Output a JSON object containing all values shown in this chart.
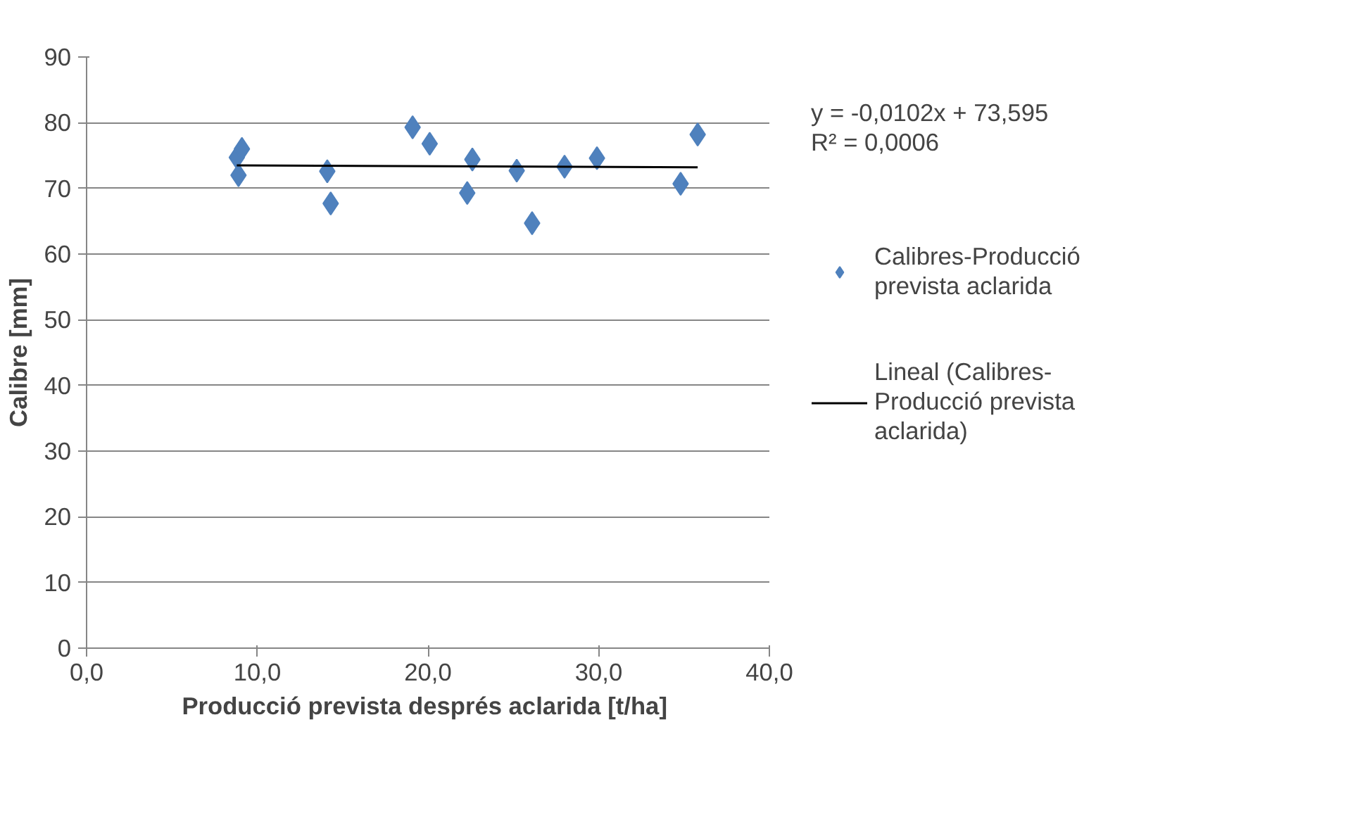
{
  "chart_data": {
    "type": "scatter",
    "xlabel": "Producció prevista després aclarida  [t/ha]",
    "ylabel": "Calibre [mm]",
    "xlim": [
      0,
      40
    ],
    "xticks": [
      {
        "value": 0,
        "label": "0,0"
      },
      {
        "value": 10,
        "label": "10,0"
      },
      {
        "value": 20,
        "label": "20,0"
      },
      {
        "value": 30,
        "label": "30,0"
      },
      {
        "value": 40,
        "label": "40,0"
      }
    ],
    "ylim": [
      0,
      90
    ],
    "yticks": [
      0,
      10,
      20,
      30,
      40,
      50,
      60,
      70,
      80,
      90
    ],
    "grid": "y",
    "legend": "right",
    "annotations": [
      "y = -0,0102x + 73,595\nR² = 0,0006"
    ],
    "series": [
      {
        "name": "Calibres-Producció prevista aclarida",
        "marker": "diamond",
        "color": "#4f81bd",
        "x": [
          8.8,
          9.1,
          8.9,
          14.1,
          14.3,
          19.1,
          20.1,
          22.6,
          22.3,
          25.2,
          26.1,
          28.0,
          29.9,
          34.8,
          35.8
        ],
        "values": [
          74.7,
          76.0,
          72.0,
          72.6,
          67.7,
          79.3,
          76.8,
          74.4,
          69.3,
          72.7,
          64.7,
          73.3,
          74.6,
          70.7,
          78.2
        ]
      },
      {
        "name": "Lineal (Calibres-Producció prevista aclarida)",
        "type": "line",
        "color": "#000000",
        "x": [
          8.8,
          35.8
        ],
        "values": [
          73.5,
          73.2
        ]
      }
    ]
  }
}
